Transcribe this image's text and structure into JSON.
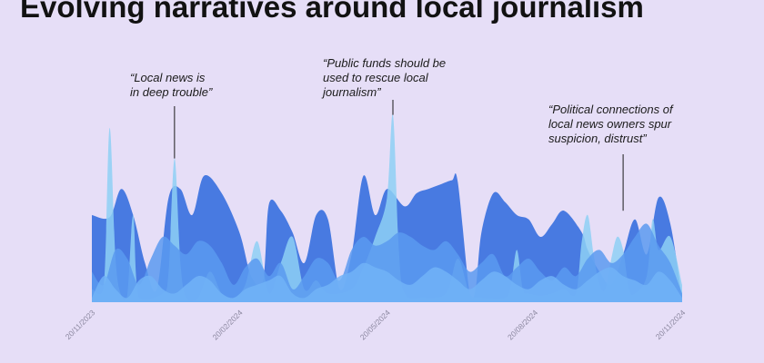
{
  "page": {
    "title": "Evolving narratives around local journalism",
    "background": "#e6def7"
  },
  "chart_data": {
    "type": "area",
    "style": "streamgraph (overlapping smooth areas from baseline)",
    "title": "Evolving narratives around local journalism",
    "xlabel": "",
    "ylabel": "",
    "x_ticks": [
      "20/11/2023",
      "20/02/2024",
      "20/05/2024",
      "20/08/2024",
      "20/11/2024"
    ],
    "x_range": [
      "20/11/2023",
      "20/11/2024"
    ],
    "ylim": [
      0,
      100
    ],
    "grid": false,
    "legend": "none",
    "series": [
      {
        "color": "#3f74df",
        "points": [
          [
            0,
            40
          ],
          [
            3,
            39
          ],
          [
            5,
            52
          ],
          [
            7,
            40
          ],
          [
            9,
            18
          ],
          [
            11,
            6
          ],
          [
            13,
            48
          ],
          [
            15,
            52
          ],
          [
            17,
            40
          ],
          [
            19,
            58
          ],
          [
            22,
            50
          ],
          [
            25,
            32
          ],
          [
            27,
            12
          ],
          [
            29,
            10
          ],
          [
            30,
            45
          ],
          [
            32,
            42
          ],
          [
            34,
            32
          ],
          [
            36,
            18
          ],
          [
            38,
            40
          ],
          [
            40,
            38
          ],
          [
            42,
            6
          ],
          [
            44,
            22
          ],
          [
            46,
            58
          ],
          [
            48,
            40
          ],
          [
            50,
            52
          ],
          [
            53,
            44
          ],
          [
            55,
            50
          ],
          [
            57,
            52
          ],
          [
            59,
            54
          ],
          [
            61,
            56
          ],
          [
            62,
            55
          ],
          [
            64,
            4
          ],
          [
            65,
            6
          ],
          [
            66,
            32
          ],
          [
            68,
            50
          ],
          [
            70,
            46
          ],
          [
            72,
            40
          ],
          [
            74,
            38
          ],
          [
            76,
            30
          ],
          [
            78,
            36
          ],
          [
            80,
            42
          ],
          [
            83,
            32
          ],
          [
            84,
            24
          ],
          [
            86,
            14
          ],
          [
            88,
            8
          ],
          [
            90,
            22
          ],
          [
            92,
            38
          ],
          [
            94,
            22
          ],
          [
            96,
            48
          ],
          [
            98,
            36
          ],
          [
            100,
            2
          ]
        ]
      },
      {
        "color": "#8ed0f5",
        "points": [
          [
            0,
            6
          ],
          [
            2,
            7
          ],
          [
            3,
            80
          ],
          [
            4,
            20
          ],
          [
            5,
            3
          ],
          [
            6,
            3
          ],
          [
            7,
            40
          ],
          [
            8,
            2
          ],
          [
            12,
            4
          ],
          [
            13,
            14
          ],
          [
            14,
            66
          ],
          [
            15,
            18
          ],
          [
            16,
            2
          ],
          [
            18,
            2
          ],
          [
            20,
            14
          ],
          [
            22,
            4
          ],
          [
            24,
            2
          ],
          [
            26,
            8
          ],
          [
            28,
            28
          ],
          [
            30,
            4
          ],
          [
            32,
            18
          ],
          [
            34,
            30
          ],
          [
            36,
            6
          ],
          [
            38,
            10
          ],
          [
            40,
            4
          ],
          [
            44,
            6
          ],
          [
            46,
            16
          ],
          [
            48,
            30
          ],
          [
            50,
            48
          ],
          [
            51,
            86
          ],
          [
            52,
            24
          ],
          [
            53,
            4
          ],
          [
            56,
            2
          ],
          [
            60,
            4
          ],
          [
            62,
            20
          ],
          [
            64,
            4
          ],
          [
            66,
            2
          ],
          [
            70,
            2
          ],
          [
            71,
            8
          ],
          [
            72,
            24
          ],
          [
            73,
            6
          ],
          [
            74,
            4
          ],
          [
            76,
            3
          ],
          [
            78,
            4
          ],
          [
            80,
            6
          ],
          [
            82,
            4
          ],
          [
            83,
            28
          ],
          [
            84,
            40
          ],
          [
            85,
            22
          ],
          [
            86,
            8
          ],
          [
            87,
            6
          ],
          [
            88,
            20
          ],
          [
            89,
            30
          ],
          [
            90,
            24
          ],
          [
            91,
            6
          ],
          [
            92,
            4
          ],
          [
            94,
            12
          ],
          [
            95,
            38
          ],
          [
            96,
            24
          ],
          [
            98,
            30
          ],
          [
            100,
            8
          ]
        ]
      },
      {
        "color": "#5b9af0",
        "points": [
          [
            0,
            14
          ],
          [
            2,
            8
          ],
          [
            4,
            24
          ],
          [
            6,
            20
          ],
          [
            8,
            8
          ],
          [
            10,
            20
          ],
          [
            12,
            30
          ],
          [
            14,
            26
          ],
          [
            16,
            22
          ],
          [
            18,
            28
          ],
          [
            20,
            26
          ],
          [
            22,
            18
          ],
          [
            24,
            8
          ],
          [
            26,
            16
          ],
          [
            28,
            20
          ],
          [
            30,
            12
          ],
          [
            32,
            18
          ],
          [
            34,
            6
          ],
          [
            36,
            12
          ],
          [
            38,
            20
          ],
          [
            40,
            18
          ],
          [
            42,
            10
          ],
          [
            44,
            24
          ],
          [
            46,
            30
          ],
          [
            48,
            26
          ],
          [
            50,
            28
          ],
          [
            52,
            32
          ],
          [
            54,
            30
          ],
          [
            56,
            26
          ],
          [
            58,
            24
          ],
          [
            60,
            28
          ],
          [
            62,
            22
          ],
          [
            64,
            14
          ],
          [
            66,
            18
          ],
          [
            68,
            22
          ],
          [
            70,
            12
          ],
          [
            72,
            16
          ],
          [
            74,
            20
          ],
          [
            76,
            14
          ],
          [
            78,
            10
          ],
          [
            80,
            16
          ],
          [
            82,
            12
          ],
          [
            84,
            20
          ],
          [
            86,
            24
          ],
          [
            88,
            18
          ],
          [
            90,
            22
          ],
          [
            92,
            30
          ],
          [
            94,
            36
          ],
          [
            96,
            26
          ],
          [
            98,
            18
          ],
          [
            100,
            4
          ]
        ]
      },
      {
        "color": "#71b3f7",
        "points": [
          [
            0,
            2
          ],
          [
            2,
            12
          ],
          [
            4,
            6
          ],
          [
            6,
            2
          ],
          [
            8,
            10
          ],
          [
            10,
            12
          ],
          [
            12,
            6
          ],
          [
            14,
            4
          ],
          [
            16,
            8
          ],
          [
            18,
            12
          ],
          [
            20,
            10
          ],
          [
            22,
            4
          ],
          [
            24,
            2
          ],
          [
            26,
            6
          ],
          [
            28,
            8
          ],
          [
            30,
            10
          ],
          [
            32,
            12
          ],
          [
            34,
            4
          ],
          [
            36,
            2
          ],
          [
            38,
            6
          ],
          [
            40,
            8
          ],
          [
            42,
            12
          ],
          [
            44,
            14
          ],
          [
            46,
            18
          ],
          [
            48,
            16
          ],
          [
            50,
            14
          ],
          [
            52,
            10
          ],
          [
            54,
            8
          ],
          [
            56,
            12
          ],
          [
            58,
            16
          ],
          [
            60,
            14
          ],
          [
            62,
            10
          ],
          [
            64,
            6
          ],
          [
            66,
            10
          ],
          [
            68,
            14
          ],
          [
            70,
            12
          ],
          [
            72,
            8
          ],
          [
            74,
            6
          ],
          [
            76,
            10
          ],
          [
            78,
            12
          ],
          [
            80,
            8
          ],
          [
            82,
            6
          ],
          [
            84,
            10
          ],
          [
            86,
            14
          ],
          [
            88,
            16
          ],
          [
            90,
            12
          ],
          [
            92,
            10
          ],
          [
            94,
            8
          ],
          [
            96,
            14
          ],
          [
            98,
            10
          ],
          [
            100,
            2
          ]
        ]
      }
    ],
    "annotations": [
      {
        "lines": [
          "“Local news is",
          "in deep trouble”"
        ],
        "x": 14,
        "y": 66
      },
      {
        "lines": [
          "“Public funds should be",
          "used to rescue local",
          "journalism”"
        ],
        "x": 51,
        "y": 86
      },
      {
        "lines": [
          "“Political connections of",
          "local news owners spur",
          "suspicion, distrust”"
        ],
        "x": 90,
        "y": 42
      }
    ]
  }
}
